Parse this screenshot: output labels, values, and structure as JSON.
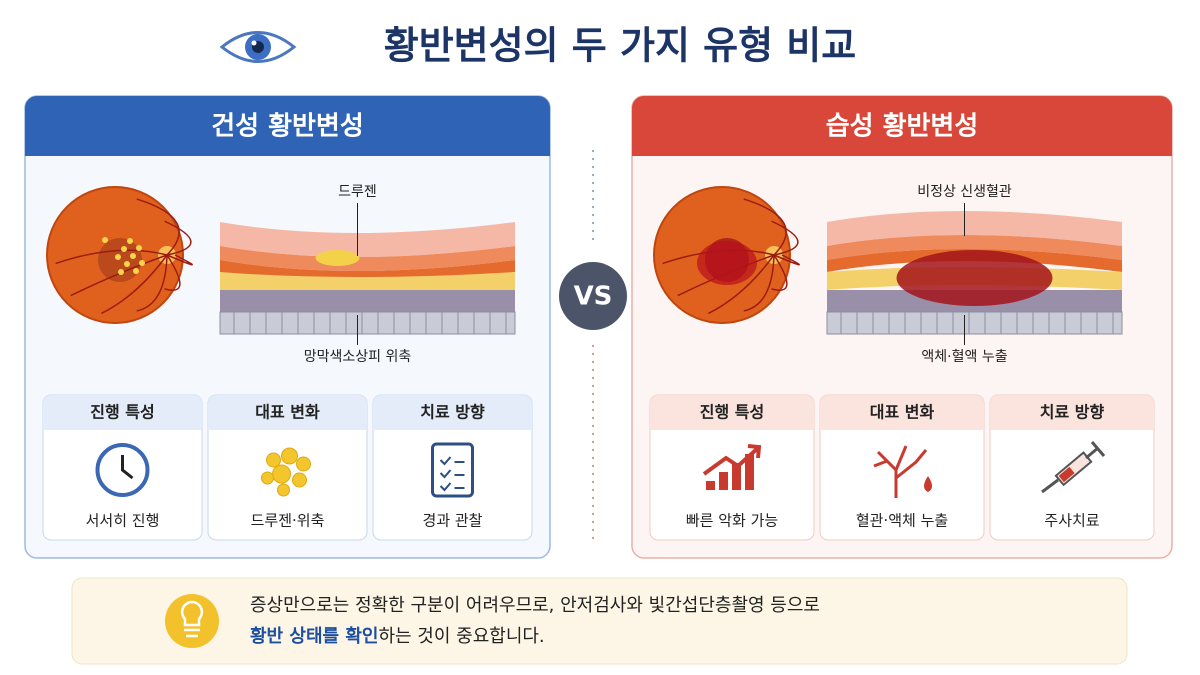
{
  "title": "황반변성의 두 가지 유형 비교",
  "vs": "VS",
  "panels": [
    {
      "title": "건성 황반변성",
      "top_label": "드루젠",
      "bottom_label": "망막색소상피 위축",
      "cards": [
        {
          "heading": "진행 특성",
          "caption": "서서히 진행"
        },
        {
          "heading": "대표 변화",
          "caption": "드루젠·위축"
        },
        {
          "heading": "치료 방향",
          "caption": "경과 관찰"
        }
      ]
    },
    {
      "title": "습성 황반변성",
      "top_label": "비정상 신생혈관",
      "bottom_label": "액체·혈액 누출",
      "cards": [
        {
          "heading": "진행 특성",
          "caption": "빠른 악화 가능"
        },
        {
          "heading": "대표 변화",
          "caption": "혈관·액체 누출"
        },
        {
          "heading": "치료 방향",
          "caption": "주사치료"
        }
      ]
    }
  ],
  "note": {
    "line1": "증상만으로는 정확한 구분이 어려우므로, 안저검사와 빛간섭단층촬영 등으로",
    "highlight": "황반 상태를 확인",
    "line2_rest": "하는 것이 중요합니다."
  }
}
